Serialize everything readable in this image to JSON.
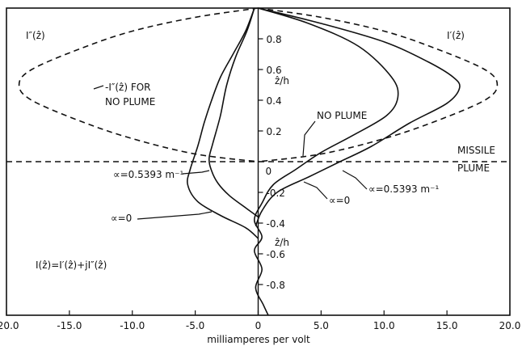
{
  "chart_data": {
    "type": "line",
    "xlabel": "milliamperes per volt",
    "xlim": [
      -20.0,
      20.0
    ],
    "ylim": [
      -1.0,
      1.0
    ],
    "x_ticks": [
      -20.0,
      -15.0,
      -10.0,
      -5.0,
      0,
      5.0,
      10.0,
      15.0,
      20.0
    ],
    "x_tick_labels": [
      "-20.0",
      "-15.0",
      "-10.0",
      "-5.0",
      "0",
      "5.0",
      "10.0",
      "15.0",
      "20.0"
    ],
    "y_ticks": [
      0.8,
      0.6,
      0.4,
      0.2,
      0,
      -0.2,
      -0.4,
      -0.6,
      -0.8
    ],
    "y_tick_labels": [
      "0.8",
      "0.6",
      "0.4",
      "0.2",
      "0",
      "-0.2",
      "-0.4",
      "-0.6",
      "-0.8"
    ],
    "grid": false,
    "series": [
      {
        "name": "I'(z) ∝=0",
        "points": [
          [
            0,
            1.0
          ],
          [
            4,
            0.9
          ],
          [
            8,
            0.75
          ],
          [
            10.6,
            0.55
          ],
          [
            11.1,
            0.42
          ],
          [
            10.2,
            0.3
          ],
          [
            7.5,
            0.17
          ],
          [
            5.0,
            0.06
          ],
          [
            3.0,
            -0.05
          ],
          [
            1.2,
            -0.15
          ],
          [
            0.3,
            -0.27
          ],
          [
            -0.3,
            -0.38
          ],
          [
            0.3,
            -0.49
          ],
          [
            -0.3,
            -0.58
          ],
          [
            0.3,
            -0.7
          ],
          [
            -0.2,
            -0.82
          ],
          [
            0.4,
            -0.93
          ],
          [
            0.8,
            -1.0
          ]
        ]
      },
      {
        "name": "I'(z) ∝=0.5393 m⁻¹",
        "points": [
          [
            0,
            1.0
          ],
          [
            5,
            0.9
          ],
          [
            10,
            0.78
          ],
          [
            13.5,
            0.65
          ],
          [
            15.5,
            0.55
          ],
          [
            16,
            0.48
          ],
          [
            15,
            0.38
          ],
          [
            12,
            0.25
          ],
          [
            9,
            0.1
          ],
          [
            6.5,
            0.0
          ],
          [
            4.0,
            -0.1
          ],
          [
            1.5,
            -0.2
          ],
          [
            0.3,
            -0.32
          ],
          [
            -0.2,
            -0.42
          ]
        ]
      },
      {
        "name": "I''(z) ∝=0",
        "points": [
          [
            -0.3,
            1.0
          ],
          [
            -1.0,
            0.85
          ],
          [
            -2.0,
            0.7
          ],
          [
            -3.0,
            0.55
          ],
          [
            -3.7,
            0.4
          ],
          [
            -4.3,
            0.25
          ],
          [
            -4.8,
            0.1
          ],
          [
            -5.4,
            -0.05
          ],
          [
            -5.6,
            -0.15
          ],
          [
            -4.8,
            -0.26
          ],
          [
            -3.0,
            -0.35
          ],
          [
            -1.0,
            -0.43
          ],
          [
            0,
            -0.5
          ]
        ]
      },
      {
        "name": "I''(z) ∝=0.5393 m⁻¹",
        "points": [
          [
            -0.3,
            1.0
          ],
          [
            -0.9,
            0.85
          ],
          [
            -1.8,
            0.68
          ],
          [
            -2.5,
            0.5
          ],
          [
            -3.0,
            0.3
          ],
          [
            -3.6,
            0.12
          ],
          [
            -3.9,
            0.02
          ],
          [
            -3.7,
            -0.06
          ],
          [
            -3.2,
            -0.14
          ],
          [
            -2.3,
            -0.22
          ],
          [
            -1.0,
            -0.3
          ],
          [
            0,
            -0.36
          ]
        ]
      },
      {
        "name": "-I''(z) FOR NO PLUME",
        "points": [
          [
            0,
            1.0
          ],
          [
            -5,
            0.94
          ],
          [
            -10,
            0.85
          ],
          [
            -14,
            0.74
          ],
          [
            -18,
            0.6
          ],
          [
            -19,
            0.5
          ],
          [
            -18,
            0.4
          ],
          [
            -14,
            0.26
          ],
          [
            -10,
            0.15
          ],
          [
            -5,
            0.05
          ],
          [
            0,
            0.0
          ]
        ]
      },
      {
        "name": "NO PLUME",
        "points": [
          [
            0,
            1.0
          ],
          [
            5,
            0.94
          ],
          [
            10,
            0.85
          ],
          [
            14,
            0.74
          ],
          [
            18,
            0.6
          ],
          [
            19,
            0.5
          ],
          [
            18,
            0.4
          ],
          [
            14,
            0.26
          ],
          [
            10,
            0.15
          ],
          [
            5,
            0.05
          ],
          [
            0,
            0.0
          ]
        ]
      }
    ],
    "annotations": {
      "left_corner": "I″(ẑ)",
      "right_corner": "I′(ẑ)",
      "neg_i_line1": "-I″(ẑ) FOR",
      "neg_i_line2": "NO PLUME",
      "zh_upper": "ẑ/h",
      "zh_lower": "ẑ/h",
      "no_plume": "NO PLUME",
      "missile_line1": "MISSILE",
      "missile_line2": "PLUME",
      "alpha_left_label": "∝=0.5393 m⁻¹",
      "alpha_zero_left": "∝=0",
      "alpha_zero_right": "∝=0",
      "alpha_right_label": "∝=0.5393 m⁻¹",
      "formula": "I(ẑ)=I′(ẑ)+jI″(ẑ)"
    }
  }
}
